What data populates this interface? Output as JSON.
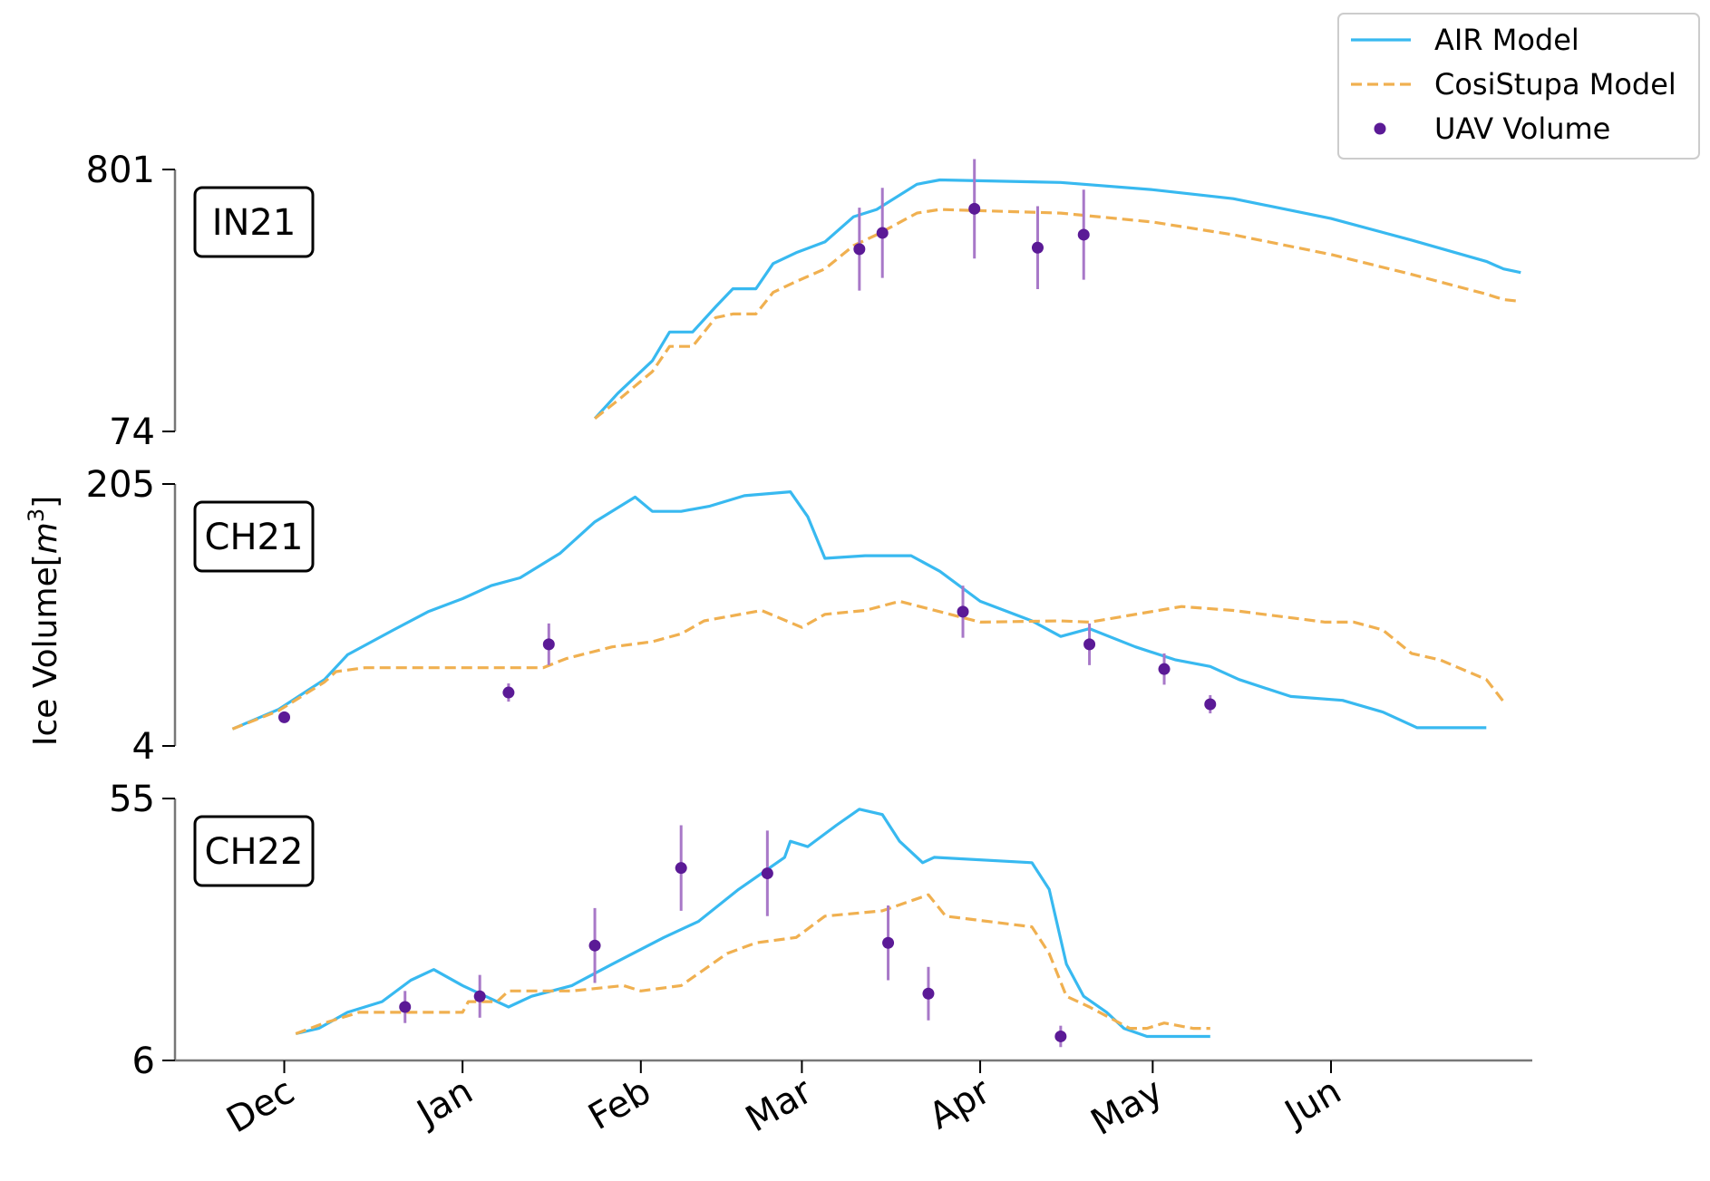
{
  "chart_data": {
    "type": "line",
    "ylabel": "Ice Volume[m3]",
    "ylabel_parts": {
      "main": "Ice Volume[",
      "italic": "m",
      "sup": "3",
      "close": "]"
    },
    "x_ticks": [
      "Dec",
      "Jan",
      "Feb",
      "Mar",
      "Apr",
      "May",
      "Jun"
    ],
    "x_tick_dates": [
      "2020-12-01",
      "2021-01-01",
      "2021-02-01",
      "2021-03-01",
      "2021-04-01",
      "2021-05-01",
      "2021-06-01"
    ],
    "xlim": [
      "2020-11-12",
      "2021-07-06"
    ],
    "legend": {
      "position": "top-right",
      "entries": [
        {
          "label": "AIR Model",
          "style": "solid",
          "color": "#38b9f0"
        },
        {
          "label": "CosiStupa Model",
          "style": "dashed",
          "color": "#f0b050"
        },
        {
          "label": "UAV Volume",
          "style": "marker",
          "color": "#5b1a96"
        }
      ]
    },
    "colors": {
      "air": "#38b9f0",
      "cosi": "#f0b050",
      "uav": "#5b1a96",
      "uav_err": "#a878c8"
    },
    "panels": [
      {
        "label": "IN21",
        "ylim": [
          74,
          801
        ],
        "yticks": [
          "801",
          "74"
        ],
        "series": [
          {
            "name": "AIR Model",
            "points": [
              [
                "2021-01-24",
                110
              ],
              [
                "2021-01-28",
                180
              ],
              [
                "2021-02-03",
                270
              ],
              [
                "2021-02-06",
                350
              ],
              [
                "2021-02-10",
                350
              ],
              [
                "2021-02-14",
                420
              ],
              [
                "2021-02-17",
                470
              ],
              [
                "2021-02-21",
                470
              ],
              [
                "2021-02-24",
                540
              ],
              [
                "2021-02-28",
                570
              ],
              [
                "2021-03-05",
                600
              ],
              [
                "2021-03-10",
                670
              ],
              [
                "2021-03-14",
                690
              ],
              [
                "2021-03-21",
                760
              ],
              [
                "2021-03-25",
                772
              ],
              [
                "2021-04-15",
                765
              ],
              [
                "2021-05-01",
                745
              ],
              [
                "2021-05-15",
                720
              ],
              [
                "2021-06-01",
                665
              ],
              [
                "2021-06-15",
                605
              ],
              [
                "2021-06-28",
                546
              ],
              [
                "2021-07-01",
                525
              ],
              [
                "2021-07-04",
                515
              ]
            ]
          },
          {
            "name": "CosiStupa Model",
            "points": [
              [
                "2021-01-24",
                110
              ],
              [
                "2021-01-28",
                160
              ],
              [
                "2021-02-03",
                240
              ],
              [
                "2021-02-06",
                310
              ],
              [
                "2021-02-10",
                310
              ],
              [
                "2021-02-14",
                390
              ],
              [
                "2021-02-17",
                400
              ],
              [
                "2021-02-21",
                400
              ],
              [
                "2021-02-24",
                460
              ],
              [
                "2021-02-28",
                490
              ],
              [
                "2021-03-05",
                525
              ],
              [
                "2021-03-10",
                590
              ],
              [
                "2021-03-14",
                620
              ],
              [
                "2021-03-21",
                680
              ],
              [
                "2021-03-25",
                690
              ],
              [
                "2021-04-15",
                680
              ],
              [
                "2021-05-01",
                655
              ],
              [
                "2021-05-15",
                620
              ],
              [
                "2021-06-01",
                565
              ],
              [
                "2021-06-15",
                510
              ],
              [
                "2021-06-28",
                455
              ],
              [
                "2021-07-01",
                440
              ],
              [
                "2021-07-04",
                435
              ]
            ]
          }
        ],
        "uav": [
          {
            "x": "2021-03-11",
            "y": 580,
            "err": 115
          },
          {
            "x": "2021-03-15",
            "y": 625,
            "err": 125
          },
          {
            "x": "2021-03-31",
            "y": 692,
            "err": 138
          },
          {
            "x": "2021-04-11",
            "y": 584,
            "err": 115
          },
          {
            "x": "2021-04-19",
            "y": 620,
            "err": 125
          }
        ]
      },
      {
        "label": "CH21",
        "ylim": [
          4,
          205
        ],
        "yticks": [
          "205",
          "4"
        ],
        "series": [
          {
            "name": "AIR Model",
            "points": [
              [
                "2020-11-22",
                17
              ],
              [
                "2020-11-30",
                32
              ],
              [
                "2020-12-08",
                55
              ],
              [
                "2020-12-12",
                74
              ],
              [
                "2020-12-20",
                93
              ],
              [
                "2020-12-26",
                107
              ],
              [
                "2021-01-01",
                117
              ],
              [
                "2021-01-06",
                127
              ],
              [
                "2021-01-11",
                133
              ],
              [
                "2021-01-18",
                152
              ],
              [
                "2021-01-24",
                176
              ],
              [
                "2021-01-31",
                195
              ],
              [
                "2021-02-03",
                184
              ],
              [
                "2021-02-08",
                184
              ],
              [
                "2021-02-13",
                188
              ],
              [
                "2021-02-19",
                196
              ],
              [
                "2021-02-27",
                199
              ],
              [
                "2021-03-02",
                180
              ],
              [
                "2021-03-05",
                148
              ],
              [
                "2021-03-12",
                150
              ],
              [
                "2021-03-20",
                150
              ],
              [
                "2021-03-25",
                138
              ],
              [
                "2021-04-01",
                115
              ],
              [
                "2021-04-10",
                100
              ],
              [
                "2021-04-15",
                88
              ],
              [
                "2021-04-20",
                94
              ],
              [
                "2021-04-28",
                80
              ],
              [
                "2021-05-05",
                70
              ],
              [
                "2021-05-11",
                65
              ],
              [
                "2021-05-16",
                55
              ],
              [
                "2021-05-25",
                42
              ],
              [
                "2021-06-03",
                39
              ],
              [
                "2021-06-10",
                30
              ],
              [
                "2021-06-16",
                18
              ],
              [
                "2021-06-28",
                18
              ]
            ]
          },
          {
            "name": "CosiStupa Model",
            "points": [
              [
                "2020-11-22",
                17
              ],
              [
                "2020-11-30",
                31
              ],
              [
                "2020-12-08",
                53
              ],
              [
                "2020-12-10",
                61
              ],
              [
                "2020-12-15",
                64
              ],
              [
                "2021-01-15",
                64
              ],
              [
                "2021-01-19",
                71
              ],
              [
                "2021-01-27",
                80
              ],
              [
                "2021-02-03",
                84
              ],
              [
                "2021-02-08",
                90
              ],
              [
                "2021-02-12",
                100
              ],
              [
                "2021-02-22",
                108
              ],
              [
                "2021-03-01",
                95
              ],
              [
                "2021-03-05",
                105
              ],
              [
                "2021-03-12",
                108
              ],
              [
                "2021-03-18",
                115
              ],
              [
                "2021-04-01",
                99
              ],
              [
                "2021-04-15",
                100
              ],
              [
                "2021-04-20",
                99
              ],
              [
                "2021-05-06",
                111
              ],
              [
                "2021-05-15",
                108
              ],
              [
                "2021-05-31",
                99
              ],
              [
                "2021-06-05",
                99
              ],
              [
                "2021-06-10",
                93
              ],
              [
                "2021-06-15",
                75
              ],
              [
                "2021-06-20",
                70
              ],
              [
                "2021-06-28",
                55
              ],
              [
                "2021-07-01",
                38
              ]
            ]
          }
        ],
        "uav": [
          {
            "x": "2020-12-01",
            "y": 26,
            "err": 0
          },
          {
            "x": "2021-01-09",
            "y": 45,
            "err": 7
          },
          {
            "x": "2021-01-16",
            "y": 82,
            "err": 16
          },
          {
            "x": "2021-03-29",
            "y": 107,
            "err": 20
          },
          {
            "x": "2021-04-20",
            "y": 82,
            "err": 16
          },
          {
            "x": "2021-05-03",
            "y": 63,
            "err": 12
          },
          {
            "x": "2021-05-11",
            "y": 36,
            "err": 7
          }
        ]
      },
      {
        "label": "CH22",
        "ylim": [
          6,
          55
        ],
        "yticks": [
          "55",
          "6"
        ],
        "series": [
          {
            "name": "AIR Model",
            "points": [
              [
                "2020-12-03",
                11
              ],
              [
                "2020-12-07",
                12
              ],
              [
                "2020-12-12",
                15
              ],
              [
                "2020-12-18",
                17
              ],
              [
                "2020-12-23",
                21
              ],
              [
                "2020-12-27",
                23
              ],
              [
                "2021-01-01",
                20
              ],
              [
                "2021-01-05",
                18
              ],
              [
                "2021-01-09",
                16
              ],
              [
                "2021-01-13",
                18
              ],
              [
                "2021-01-20",
                20
              ],
              [
                "2021-01-27",
                24
              ],
              [
                "2021-02-05",
                29
              ],
              [
                "2021-02-11",
                32
              ],
              [
                "2021-02-18",
                38
              ],
              [
                "2021-02-26",
                44
              ],
              [
                "2021-02-27",
                47
              ],
              [
                "2021-03-02",
                46
              ],
              [
                "2021-03-07",
                50
              ],
              [
                "2021-03-11",
                53
              ],
              [
                "2021-03-15",
                52
              ],
              [
                "2021-03-18",
                47
              ],
              [
                "2021-03-22",
                43
              ],
              [
                "2021-03-24",
                44
              ],
              [
                "2021-04-10",
                43
              ],
              [
                "2021-04-13",
                38
              ],
              [
                "2021-04-16",
                24
              ],
              [
                "2021-04-19",
                18
              ],
              [
                "2021-04-23",
                15
              ],
              [
                "2021-04-26",
                12
              ],
              [
                "2021-04-30",
                10.5
              ],
              [
                "2021-05-11",
                10.5
              ]
            ]
          },
          {
            "name": "CosiStupa Model",
            "points": [
              [
                "2020-12-03",
                11
              ],
              [
                "2020-12-08",
                13
              ],
              [
                "2020-12-14",
                15
              ],
              [
                "2021-01-01",
                15
              ],
              [
                "2021-01-02",
                17
              ],
              [
                "2021-01-07",
                17
              ],
              [
                "2021-01-09",
                19
              ],
              [
                "2021-01-20",
                19
              ],
              [
                "2021-01-29",
                20
              ],
              [
                "2021-02-01",
                19
              ],
              [
                "2021-02-08",
                20
              ],
              [
                "2021-02-16",
                26
              ],
              [
                "2021-02-21",
                28
              ],
              [
                "2021-02-28",
                29
              ],
              [
                "2021-03-05",
                33
              ],
              [
                "2021-03-15",
                34
              ],
              [
                "2021-03-23",
                37
              ],
              [
                "2021-03-26",
                33
              ],
              [
                "2021-04-10",
                31
              ],
              [
                "2021-04-13",
                26
              ],
              [
                "2021-04-16",
                18
              ],
              [
                "2021-04-20",
                16
              ],
              [
                "2021-04-27",
                12
              ],
              [
                "2021-04-30",
                12
              ],
              [
                "2021-05-03",
                13
              ],
              [
                "2021-05-08",
                12
              ],
              [
                "2021-05-11",
                12
              ]
            ]
          }
        ],
        "uav": [
          {
            "x": "2020-12-22",
            "y": 16,
            "err": 3
          },
          {
            "x": "2021-01-04",
            "y": 18,
            "err": 4
          },
          {
            "x": "2021-01-24",
            "y": 27.5,
            "err": 7
          },
          {
            "x": "2021-02-08",
            "y": 42,
            "err": 8
          },
          {
            "x": "2021-02-23",
            "y": 41,
            "err": 8
          },
          {
            "x": "2021-03-16",
            "y": 28,
            "err": 7
          },
          {
            "x": "2021-03-23",
            "y": 18.5,
            "err": 5
          },
          {
            "x": "2021-04-15",
            "y": 10.5,
            "err": 2
          }
        ]
      }
    ]
  }
}
